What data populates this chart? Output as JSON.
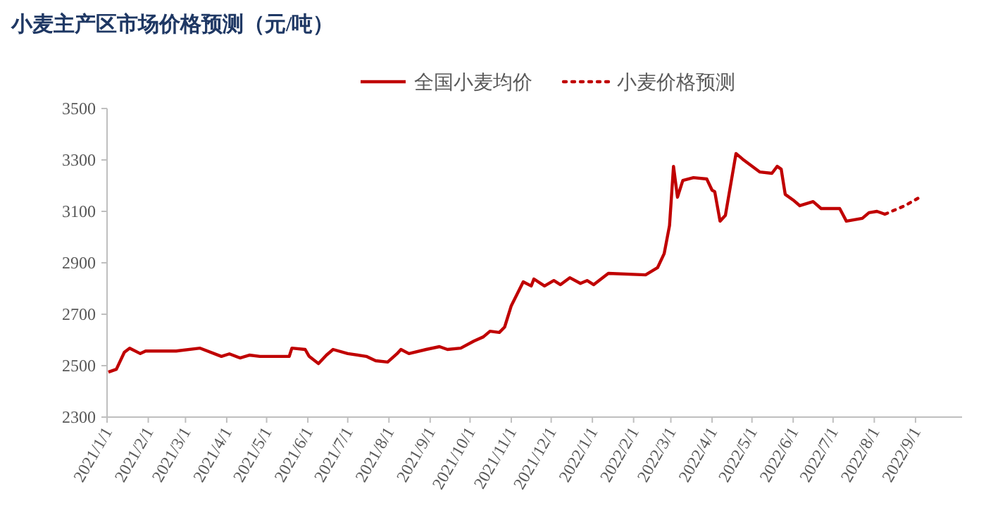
{
  "chart_data": {
    "type": "line",
    "title": "小麦主产区市场价格预测（元/吨）",
    "legend": "top",
    "xlim": [
      "2021-01-01",
      "2022-10-06"
    ],
    "xticks": [
      {
        "value": "2021-01-01",
        "label": "2021/1/1"
      },
      {
        "value": "2021-02-01",
        "label": "2021/2/1"
      },
      {
        "value": "2021-03-01",
        "label": "2021/3/1"
      },
      {
        "value": "2021-04-01",
        "label": "2021/4/1"
      },
      {
        "value": "2021-05-01",
        "label": "2021/5/1"
      },
      {
        "value": "2021-06-01",
        "label": "2021/6/1"
      },
      {
        "value": "2021-07-01",
        "label": "2021/7/1"
      },
      {
        "value": "2021-08-01",
        "label": "2021/8/1"
      },
      {
        "value": "2021-09-01",
        "label": "2021/9/1"
      },
      {
        "value": "2021-10-01",
        "label": "2021/10/1"
      },
      {
        "value": "2021-11-01",
        "label": "2021/11/1"
      },
      {
        "value": "2021-12-01",
        "label": "2021/12/1"
      },
      {
        "value": "2022-01-01",
        "label": "2022/1/1"
      },
      {
        "value": "2022-02-01",
        "label": "2022/2/1"
      },
      {
        "value": "2022-03-01",
        "label": "2022/3/1"
      },
      {
        "value": "2022-04-01",
        "label": "2022/4/1"
      },
      {
        "value": "2022-05-01",
        "label": "2022/5/1"
      },
      {
        "value": "2022-06-01",
        "label": "2022/6/1"
      },
      {
        "value": "2022-07-01",
        "label": "2022/7/1"
      },
      {
        "value": "2022-08-01",
        "label": "2022/8/1"
      },
      {
        "value": "2022-09-01",
        "label": "2022/9/1"
      }
    ],
    "ylim": [
      2300,
      3500
    ],
    "yticks": [
      2300,
      2500,
      2700,
      2900,
      3100,
      3300,
      3500
    ],
    "series": [
      {
        "name": "全国小麦均价",
        "color": "#c00000",
        "line_style": "solid",
        "x": [
          "2021-01-02",
          "2021-01-08",
          "2021-01-14",
          "2021-01-18",
          "2021-01-26",
          "2021-01-30",
          "2021-02-22",
          "2021-03-12",
          "2021-03-28",
          "2021-04-03",
          "2021-04-11",
          "2021-04-18",
          "2021-04-26",
          "2021-05-12",
          "2021-05-18",
          "2021-05-20",
          "2021-05-30",
          "2021-06-02",
          "2021-06-09",
          "2021-06-15",
          "2021-06-20",
          "2021-07-01",
          "2021-07-15",
          "2021-07-22",
          "2021-07-31",
          "2021-08-07",
          "2021-08-10",
          "2021-08-16",
          "2021-08-29",
          "2021-09-08",
          "2021-09-14",
          "2021-09-24",
          "2021-10-04",
          "2021-10-11",
          "2021-10-16",
          "2021-10-23",
          "2021-10-27",
          "2021-11-01",
          "2021-11-10",
          "2021-11-16",
          "2021-11-18",
          "2021-11-26",
          "2021-12-03",
          "2021-12-08",
          "2021-12-15",
          "2021-12-23",
          "2021-12-28",
          "2022-01-02",
          "2022-01-13",
          "2022-02-10",
          "2022-02-19",
          "2022-02-24",
          "2022-02-28",
          "2022-03-03",
          "2022-03-06",
          "2022-03-10",
          "2022-03-18",
          "2022-03-28",
          "2022-04-01",
          "2022-04-03",
          "2022-04-07",
          "2022-04-11",
          "2022-04-19",
          "2022-04-24",
          "2022-05-07",
          "2022-05-16",
          "2022-05-20",
          "2022-05-23",
          "2022-05-26",
          "2022-06-01",
          "2022-06-06",
          "2022-06-16",
          "2022-06-22",
          "2022-07-06",
          "2022-07-11",
          "2022-07-23",
          "2022-07-28",
          "2022-08-03",
          "2022-08-09"
        ],
        "values": [
          2475,
          2486,
          2552,
          2568,
          2547,
          2557,
          2557,
          2568,
          2536,
          2546,
          2530,
          2541,
          2536,
          2536,
          2536,
          2568,
          2563,
          2536,
          2508,
          2541,
          2563,
          2547,
          2536,
          2519,
          2514,
          2546,
          2563,
          2547,
          2563,
          2574,
          2563,
          2568,
          2596,
          2612,
          2634,
          2629,
          2650,
          2733,
          2826,
          2810,
          2837,
          2810,
          2831,
          2815,
          2842,
          2820,
          2831,
          2815,
          2859,
          2853,
          2881,
          2936,
          3045,
          3275,
          3155,
          3220,
          3231,
          3226,
          3182,
          3177,
          3062,
          3084,
          3325,
          3303,
          3253,
          3248,
          3275,
          3264,
          3166,
          3144,
          3122,
          3138,
          3111,
          3111,
          3062,
          3073,
          3095,
          3100,
          3089
        ]
      },
      {
        "name": "小麦价格预测",
        "color": "#c00000",
        "line_style": "dotted",
        "x": [
          "2022-08-09",
          "2022-08-24",
          "2022-09-06"
        ],
        "values": [
          3089,
          3122,
          3160
        ]
      }
    ]
  }
}
